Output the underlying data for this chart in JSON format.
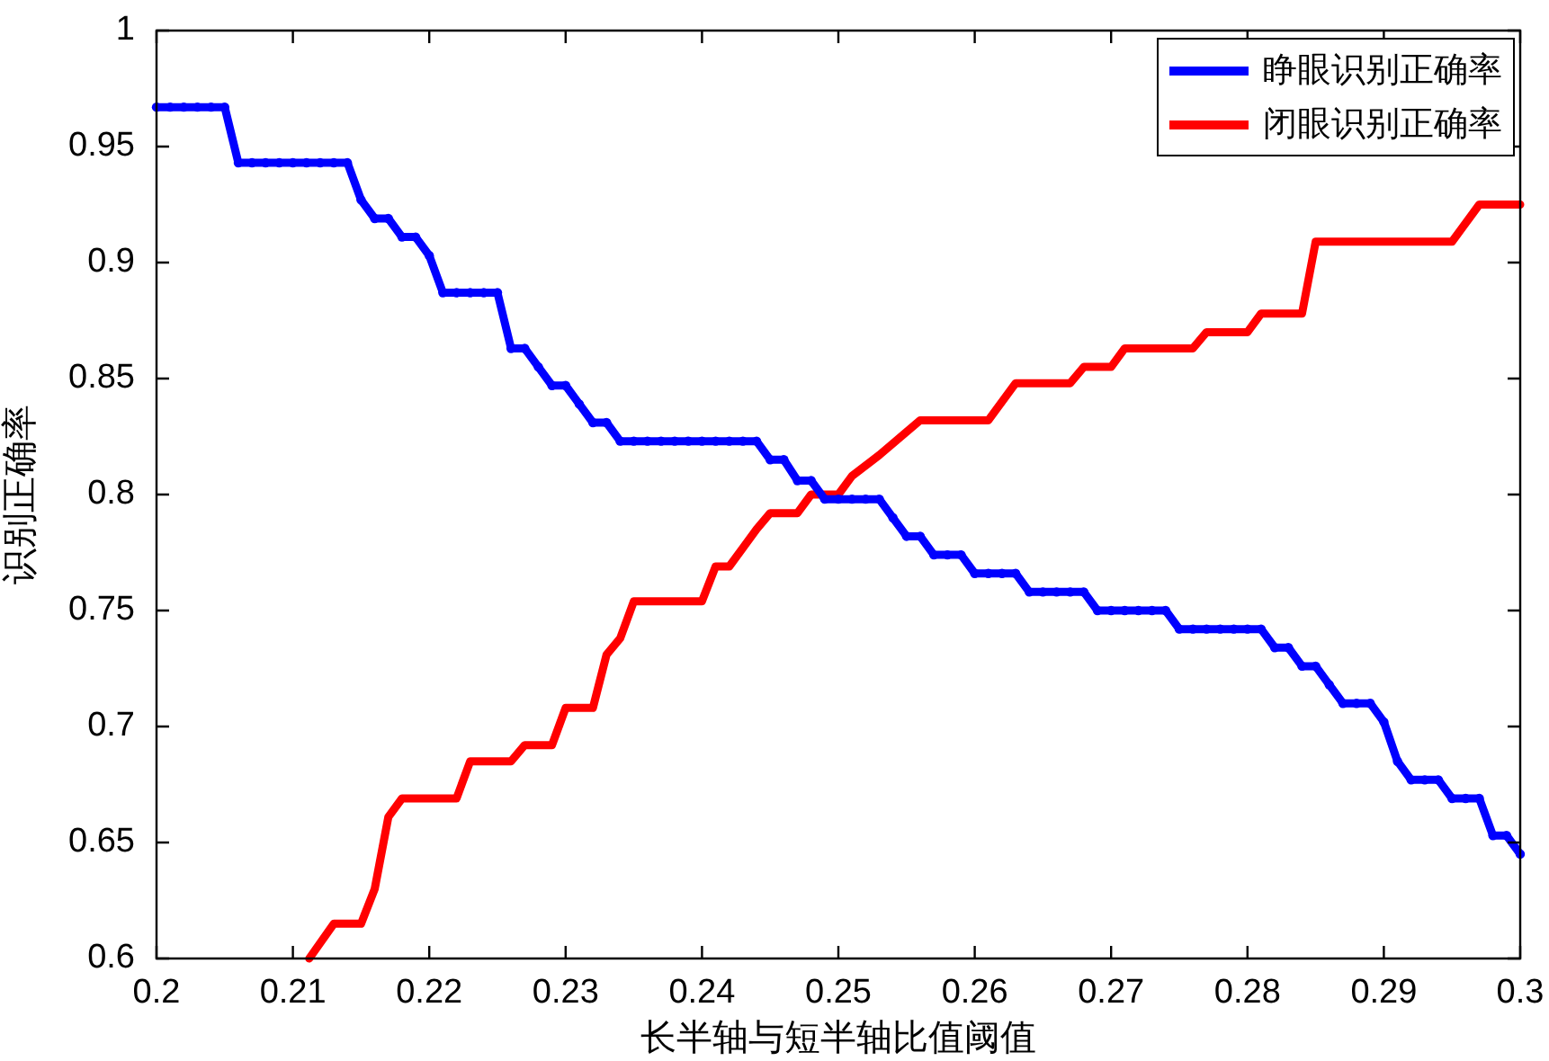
{
  "chart_data": {
    "type": "line",
    "xlabel": "长半轴与短半轴比值阈值",
    "ylabel": "识别正确率",
    "xlim": [
      0.2,
      0.3
    ],
    "xticks": [
      0.2,
      0.21,
      0.22,
      0.23,
      0.24,
      0.25,
      0.26,
      0.27,
      0.28,
      0.29,
      0.3
    ],
    "ylim": [
      0.6,
      1
    ],
    "yticks": [
      0.6,
      0.65,
      0.7,
      0.75,
      0.8,
      0.85,
      0.9,
      0.95,
      1
    ],
    "grid": false,
    "legend": "top right",
    "line_style": "solid",
    "series": [
      {
        "name": "睁眼识别正确率",
        "color": "#0000ff",
        "marker": "circle",
        "x": [
          0.2,
          0.201,
          0.202,
          0.203,
          0.204,
          0.205,
          0.206,
          0.207,
          0.208,
          0.209,
          0.21,
          0.211,
          0.212,
          0.213,
          0.214,
          0.215,
          0.216,
          0.217,
          0.218,
          0.219,
          0.22,
          0.221,
          0.222,
          0.223,
          0.224,
          0.225,
          0.226,
          0.227,
          0.228,
          0.229,
          0.23,
          0.231,
          0.232,
          0.233,
          0.234,
          0.235,
          0.236,
          0.237,
          0.238,
          0.239,
          0.24,
          0.241,
          0.242,
          0.243,
          0.244,
          0.245,
          0.246,
          0.247,
          0.248,
          0.249,
          0.25,
          0.251,
          0.252,
          0.253,
          0.254,
          0.255,
          0.256,
          0.257,
          0.258,
          0.259,
          0.26,
          0.261,
          0.262,
          0.263,
          0.264,
          0.265,
          0.266,
          0.267,
          0.268,
          0.269,
          0.27,
          0.271,
          0.272,
          0.273,
          0.274,
          0.275,
          0.276,
          0.277,
          0.278,
          0.279,
          0.28,
          0.281,
          0.282,
          0.283,
          0.284,
          0.285,
          0.286,
          0.287,
          0.288,
          0.289,
          0.29,
          0.291,
          0.292,
          0.293,
          0.294,
          0.295,
          0.296,
          0.297,
          0.298,
          0.299,
          0.3
        ],
        "values": [
          0.967,
          0.967,
          0.967,
          0.967,
          0.967,
          0.967,
          0.943,
          0.943,
          0.943,
          0.943,
          0.943,
          0.943,
          0.943,
          0.943,
          0.943,
          0.927,
          0.919,
          0.919,
          0.911,
          0.911,
          0.903,
          0.887,
          0.887,
          0.887,
          0.887,
          0.887,
          0.863,
          0.863,
          0.855,
          0.847,
          0.847,
          0.839,
          0.831,
          0.831,
          0.823,
          0.823,
          0.823,
          0.823,
          0.823,
          0.823,
          0.823,
          0.823,
          0.823,
          0.823,
          0.823,
          0.815,
          0.815,
          0.806,
          0.806,
          0.798,
          0.798,
          0.798,
          0.798,
          0.798,
          0.79,
          0.782,
          0.782,
          0.774,
          0.774,
          0.774,
          0.766,
          0.766,
          0.766,
          0.766,
          0.758,
          0.758,
          0.758,
          0.758,
          0.758,
          0.75,
          0.75,
          0.75,
          0.75,
          0.75,
          0.75,
          0.742,
          0.742,
          0.742,
          0.742,
          0.742,
          0.742,
          0.742,
          0.734,
          0.734,
          0.726,
          0.726,
          0.718,
          0.71,
          0.71,
          0.71,
          0.702,
          0.685,
          0.677,
          0.677,
          0.677,
          0.669,
          0.669,
          0.669,
          0.653,
          0.653,
          0.645
        ]
      },
      {
        "name": "闭眼识别正确率",
        "color": "#ff0000",
        "marker": "none",
        "x": [
          0.2112,
          0.213,
          0.215,
          0.216,
          0.217,
          0.218,
          0.222,
          0.223,
          0.226,
          0.227,
          0.229,
          0.23,
          0.232,
          0.233,
          0.234,
          0.235,
          0.24,
          0.241,
          0.242,
          0.243,
          0.244,
          0.245,
          0.247,
          0.248,
          0.25,
          0.251,
          0.253,
          0.256,
          0.261,
          0.263,
          0.267,
          0.268,
          0.27,
          0.271,
          0.276,
          0.277,
          0.28,
          0.281,
          0.284,
          0.285,
          0.295,
          0.297,
          0.3
        ],
        "values": [
          0.6,
          0.615,
          0.615,
          0.63,
          0.661,
          0.669,
          0.669,
          0.685,
          0.685,
          0.692,
          0.692,
          0.708,
          0.708,
          0.731,
          0.738,
          0.754,
          0.754,
          0.769,
          0.769,
          0.777,
          0.785,
          0.792,
          0.792,
          0.8,
          0.8,
          0.808,
          0.817,
          0.832,
          0.832,
          0.848,
          0.848,
          0.855,
          0.855,
          0.863,
          0.863,
          0.87,
          0.87,
          0.878,
          0.878,
          0.909,
          0.909,
          0.925,
          0.925
        ]
      }
    ]
  }
}
